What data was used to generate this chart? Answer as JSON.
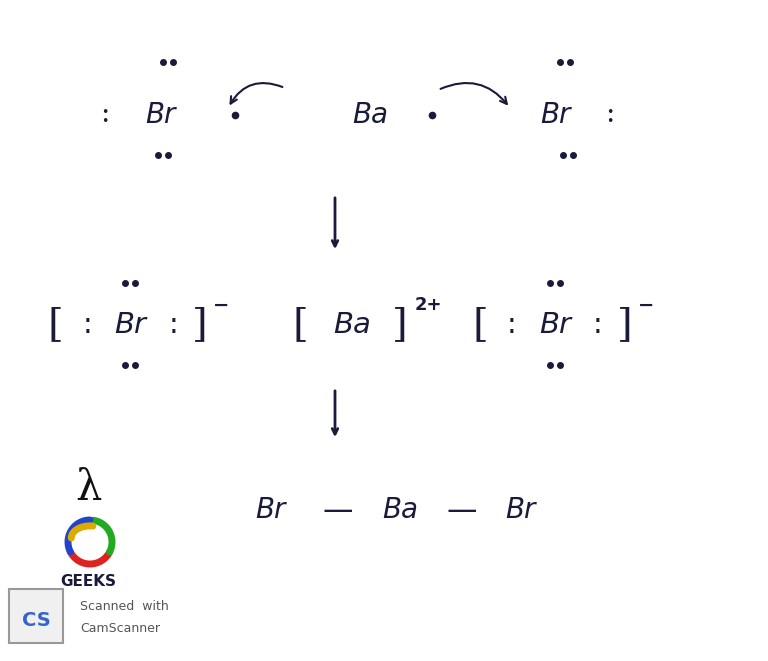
{
  "background_color": "#ffffff",
  "text_color": "#1a1a3a",
  "fig_width": 7.68,
  "fig_height": 6.61,
  "dpi": 100,
  "geeks_text": "GEEKS",
  "scanner_text": [
    "Scanned  with",
    "CamScanner"
  ]
}
